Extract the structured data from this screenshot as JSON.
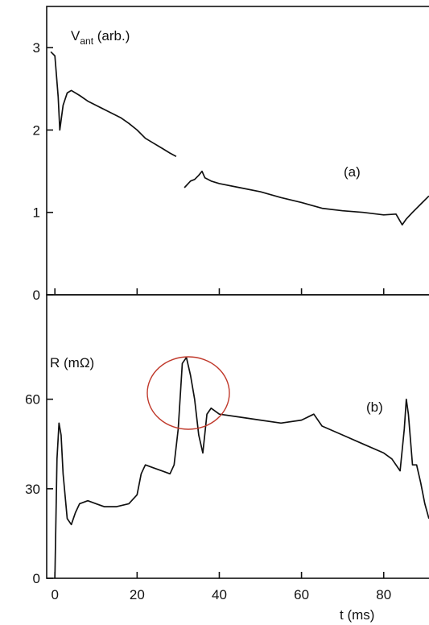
{
  "chart_data": [
    {
      "type": "line",
      "panel_label": "(a)",
      "ylabel_main": "V",
      "ylabel_sub": "ant",
      "ylabel_unit": " (arb.)",
      "ylim": [
        0,
        3.5
      ],
      "yticks": [
        0,
        1,
        2,
        3
      ],
      "ytick_labels": [
        "0",
        "1",
        "2",
        "3"
      ],
      "xlim": [
        -2,
        92
      ],
      "series": [
        {
          "segments": [
            {
              "x": [
                -1,
                0,
                0.8,
                1.2,
                2,
                3,
                4,
                6,
                8,
                10,
                12,
                14,
                16,
                18,
                20,
                22,
                24,
                26,
                28,
                29.5
              ],
              "y": [
                2.95,
                2.9,
                2.4,
                2.0,
                2.3,
                2.45,
                2.48,
                2.42,
                2.35,
                2.3,
                2.25,
                2.2,
                2.15,
                2.08,
                2.0,
                1.9,
                1.84,
                1.78,
                1.72,
                1.68
              ]
            },
            {
              "x": [
                31.5,
                33,
                34,
                35,
                35.8,
                36.5,
                38,
                40,
                45,
                50,
                55,
                60,
                65,
                70,
                75,
                80,
                83,
                84.5,
                85.5,
                87,
                89,
                91
              ],
              "y": [
                1.3,
                1.38,
                1.4,
                1.45,
                1.5,
                1.42,
                1.38,
                1.35,
                1.3,
                1.25,
                1.18,
                1.12,
                1.05,
                1.02,
                1.0,
                0.97,
                0.98,
                0.85,
                0.92,
                1.0,
                1.1,
                1.2
              ]
            }
          ]
        }
      ]
    },
    {
      "type": "line",
      "panel_label": "(b)",
      "ylabel": "R (mΩ)",
      "xlabel": "t  (ms)",
      "ylim": [
        0,
        95
      ],
      "yticks": [
        0,
        30,
        60
      ],
      "ytick_labels": [
        "0",
        "30",
        "60"
      ],
      "xlim": [
        -2,
        92
      ],
      "xticks": [
        0,
        20,
        40,
        60,
        80
      ],
      "xtick_labels": [
        "0",
        "20",
        "40",
        "60",
        "80"
      ],
      "series": [
        {
          "x": [
            0,
            0.5,
            1,
            1.5,
            2,
            3,
            4,
            5,
            6,
            8,
            10,
            12,
            15,
            18,
            20,
            21,
            22,
            24,
            26,
            28,
            29,
            30,
            31,
            32,
            33,
            34,
            35,
            36,
            37,
            38,
            40,
            45,
            50,
            55,
            60,
            63,
            65,
            70,
            75,
            80,
            82,
            84,
            85,
            85.5,
            86,
            87,
            88,
            89,
            90,
            91
          ],
          "y": [
            0,
            40,
            52,
            48,
            35,
            20,
            18,
            22,
            25,
            26,
            25,
            24,
            24,
            25,
            28,
            35,
            38,
            37,
            36,
            35,
            38,
            50,
            72,
            74,
            68,
            60,
            48,
            42,
            55,
            57,
            55,
            54,
            53,
            52,
            53,
            55,
            51,
            48,
            45,
            42,
            40,
            36,
            50,
            60,
            55,
            38,
            38,
            32,
            25,
            20
          ]
        }
      ]
    }
  ]
}
